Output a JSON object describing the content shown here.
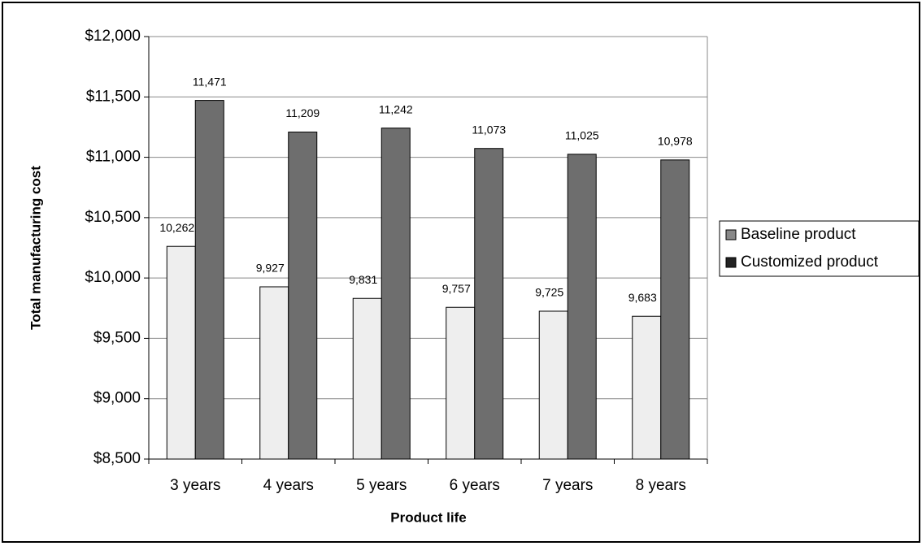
{
  "chart_data": {
    "type": "bar",
    "x_label": "Product life",
    "y_label": "Total manufacturing cost",
    "categories": [
      "3 years",
      "4 years",
      "5 years",
      "6 years",
      "7 years",
      "8 years"
    ],
    "series": [
      {
        "name": "Baseline product",
        "color": "#eeeeee",
        "values": [
          10262,
          9927,
          9831,
          9757,
          9725,
          9683
        ],
        "value_labels": [
          "10,262",
          "9,927",
          "9,831",
          "9,757",
          "9,725",
          "9,683"
        ]
      },
      {
        "name": "Customized product",
        "color": "#6e6e6e",
        "values": [
          11471,
          11209,
          11242,
          11073,
          11025,
          10978
        ],
        "value_labels": [
          "11,471",
          "11,209",
          "11,242",
          "11,073",
          "11,025",
          "10,978"
        ]
      }
    ],
    "ylim": [
      8500,
      12000
    ],
    "yticks": [
      {
        "value": 8500,
        "label": "$8,500"
      },
      {
        "value": 9000,
        "label": "$9,000"
      },
      {
        "value": 9500,
        "label": "$9,500"
      },
      {
        "value": 10000,
        "label": "$10,000"
      },
      {
        "value": 10500,
        "label": "$10,500"
      },
      {
        "value": 11000,
        "label": "$11,000"
      },
      {
        "value": 11500,
        "label": "$11,500"
      },
      {
        "value": 12000,
        "label": "$12,000"
      }
    ],
    "grid": true,
    "legend": "right"
  }
}
